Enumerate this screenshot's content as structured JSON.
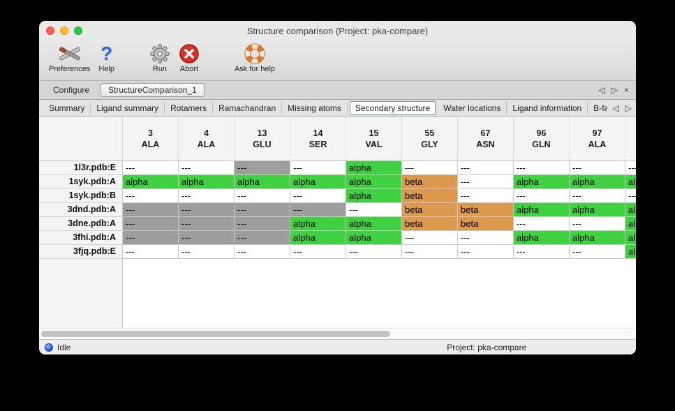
{
  "window": {
    "title": "Structure comparison (Project: pka-compare)"
  },
  "toolbar": [
    {
      "name": "preferences",
      "label": "Preferences",
      "icon": "tools-icon",
      "group_gap": false
    },
    {
      "name": "help",
      "label": "Help",
      "icon": "question-icon",
      "group_gap": false
    },
    {
      "name": "run",
      "label": "Run",
      "icon": "gear-icon",
      "group_gap": true
    },
    {
      "name": "abort",
      "label": "Abort",
      "icon": "abort-icon",
      "group_gap": false
    },
    {
      "name": "ask-for-help",
      "label": "Ask for help",
      "icon": "lifebuoy-icon",
      "group_gap": true
    }
  ],
  "page_tabs": {
    "items": [
      {
        "label": "Configure",
        "active": false
      },
      {
        "label": "StructureComparison_1",
        "active": true
      }
    ],
    "controls": {
      "prev": "◁",
      "next": "▷",
      "close": "×"
    }
  },
  "view_tabs": {
    "items": [
      {
        "label": "Summary",
        "active": false
      },
      {
        "label": "Ligand summary",
        "active": false
      },
      {
        "label": "Rotamers",
        "active": false
      },
      {
        "label": "Ramachandran",
        "active": false
      },
      {
        "label": "Missing atoms",
        "active": false
      },
      {
        "label": "Secondary structure",
        "active": true
      },
      {
        "label": "Water locations",
        "active": false
      },
      {
        "label": "Ligand information",
        "active": false
      },
      {
        "label": "B-factors",
        "active": false
      }
    ],
    "controls": {
      "prev": "◁",
      "next": "▷"
    }
  },
  "table": {
    "columns": [
      {
        "num": "3",
        "res": "ALA"
      },
      {
        "num": "4",
        "res": "ALA"
      },
      {
        "num": "13",
        "res": "GLU"
      },
      {
        "num": "14",
        "res": "SER"
      },
      {
        "num": "15",
        "res": "VAL"
      },
      {
        "num": "55",
        "res": "GLY"
      },
      {
        "num": "67",
        "res": "ASN"
      },
      {
        "num": "96",
        "res": "GLN"
      },
      {
        "num": "97",
        "res": "ALA"
      },
      {
        "num": "",
        "res": ""
      }
    ],
    "cell_text": {
      "none": "---",
      "gap": "---",
      "alpha": "alpha",
      "beta": "beta"
    },
    "rows": [
      {
        "label": "1l3r.pdb:E",
        "cells": [
          "none",
          "none",
          "gap",
          "none",
          "alpha",
          "none",
          "none",
          "none",
          "none",
          "none"
        ]
      },
      {
        "label": "1syk.pdb:A",
        "cells": [
          "alpha",
          "alpha",
          "alpha",
          "alpha",
          "alpha",
          "beta",
          "none",
          "alpha",
          "alpha",
          "alpha"
        ]
      },
      {
        "label": "1syk.pdb:B",
        "cells": [
          "none",
          "none",
          "none",
          "none",
          "alpha",
          "beta",
          "none",
          "none",
          "none",
          "none"
        ]
      },
      {
        "label": "3dnd.pdb:A",
        "cells": [
          "gap",
          "gap",
          "gap",
          "gap",
          "none",
          "beta",
          "beta",
          "alpha",
          "alpha",
          "alpha"
        ]
      },
      {
        "label": "3dne.pdb:A",
        "cells": [
          "gap",
          "gap",
          "gap",
          "alpha",
          "alpha",
          "beta",
          "beta",
          "none",
          "none",
          "alpha"
        ]
      },
      {
        "label": "3fhi.pdb:A",
        "cells": [
          "gap",
          "gap",
          "gap",
          "alpha",
          "alpha",
          "none",
          "none",
          "alpha",
          "alpha",
          "alpha"
        ]
      },
      {
        "label": "3fjq.pdb:E",
        "cells": [
          "none",
          "none",
          "none",
          "none",
          "none",
          "none",
          "none",
          "none",
          "none",
          "alpha"
        ]
      }
    ]
  },
  "status_bar": {
    "status": "Idle",
    "project": "Project: pka-compare"
  },
  "colors": {
    "alpha": "#3fd13f",
    "beta": "#dc9a4e",
    "gap": "#9d9d9d"
  }
}
